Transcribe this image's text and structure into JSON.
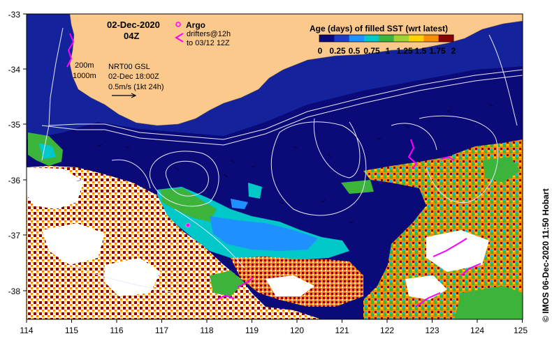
{
  "map": {
    "date": "02-Dec-2020",
    "time": "04Z",
    "argo_label": "Argo",
    "drifters_label": "drifters@12h",
    "drifters_sub": "to 03/12 12Z",
    "isobath_200": "200m",
    "isobath_1000": "1000m",
    "product": "NRT00 GSL",
    "product_time": "02-Dec 18:00Z",
    "scale_label": "0.5m/s (1kt 24h)",
    "legend_title": "Age (days) of filled SST (wrt latest)",
    "legend_ticks": [
      "0",
      "0.25",
      "0.5",
      "0.75",
      "1",
      "1.25",
      "1.5",
      "1.75",
      "2"
    ],
    "legend_colors": [
      "#0a0a78",
      "#1a3cc8",
      "#1e90ff",
      "#00c8c8",
      "#3cb43c",
      "#a0d232",
      "#ffd200",
      "#ff8c00",
      "#8b0000"
    ],
    "credit": "© IMOS 06-Dec-2020 11:50 Hobart",
    "x_ticks": [
      "114",
      "115",
      "116",
      "117",
      "118",
      "119",
      "120",
      "121",
      "122",
      "123",
      "124",
      "125"
    ],
    "y_ticks": [
      "-33",
      "-34",
      "-35",
      "-36",
      "-37",
      "-38"
    ],
    "colors": {
      "land": "#fcc98c",
      "ocean_deep": "#0a0a78",
      "ocean_mid": "#14239b",
      "argo": "#ff00ff",
      "drifter": "#ff00ff"
    }
  }
}
